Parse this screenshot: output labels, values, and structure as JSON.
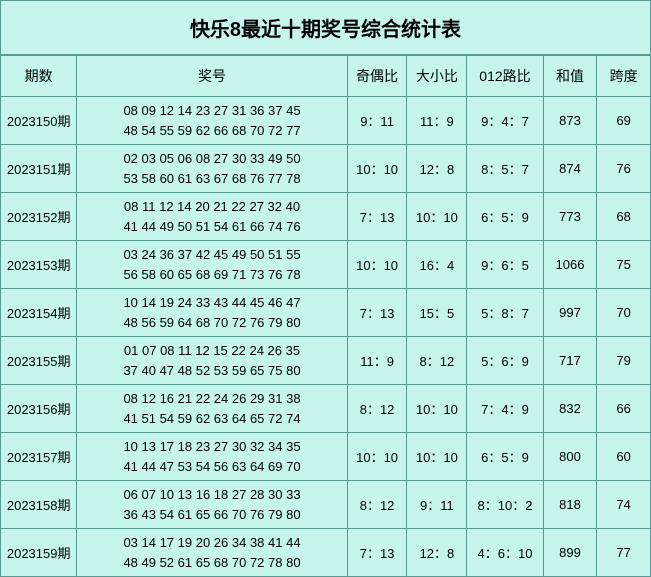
{
  "title": "快乐8最近十期奖号综合统计表",
  "headers": {
    "period": "期数",
    "numbers": "奖号",
    "oddeven": "奇偶比",
    "bigsmall": "大小比",
    "route012": "012路比",
    "sum": "和值",
    "span": "跨度"
  },
  "rows": [
    {
      "period": "2023150期",
      "numbers_line1": "08 09 12 14 23 27 31 36 37 45",
      "numbers_line2": "48 54 55 59 62 66 68 70 72 77",
      "oddeven": "9：11",
      "bigsmall": "11：9",
      "route012": "9：4：7",
      "sum": "873",
      "span": "69"
    },
    {
      "period": "2023151期",
      "numbers_line1": "02 03 05 06 08 27 30 33 49 50",
      "numbers_line2": "53 58 60 61 63 67 68 76 77 78",
      "oddeven": "10：10",
      "bigsmall": "12：8",
      "route012": "8：5：7",
      "sum": "874",
      "span": "76"
    },
    {
      "period": "2023152期",
      "numbers_line1": "08 11 12 14 20 21 22 27 32 40",
      "numbers_line2": "41 44 49 50 51 54 61 66 74 76",
      "oddeven": "7：13",
      "bigsmall": "10：10",
      "route012": "6：5：9",
      "sum": "773",
      "span": "68"
    },
    {
      "period": "2023153期",
      "numbers_line1": "03 24 36 37 42 45 49 50 51 55",
      "numbers_line2": "56 58 60 65 68 69 71 73 76 78",
      "oddeven": "10：10",
      "bigsmall": "16：4",
      "route012": "9：6：5",
      "sum": "1066",
      "span": "75"
    },
    {
      "period": "2023154期",
      "numbers_line1": "10 14 19 24 33 43 44 45 46 47",
      "numbers_line2": "48 56 59 64 68 70 72 76 79 80",
      "oddeven": "7：13",
      "bigsmall": "15：5",
      "route012": "5：8：7",
      "sum": "997",
      "span": "70"
    },
    {
      "period": "2023155期",
      "numbers_line1": "01 07 08 11 12 15 22 24 26 35",
      "numbers_line2": "37 40 47 48 52 53 59 65 75 80",
      "oddeven": "11：9",
      "bigsmall": "8：12",
      "route012": "5：6：9",
      "sum": "717",
      "span": "79"
    },
    {
      "period": "2023156期",
      "numbers_line1": "08 12 16 21 22 24 26 29 31 38",
      "numbers_line2": "41 51 54 59 62 63 64 65 72 74",
      "oddeven": "8：12",
      "bigsmall": "10：10",
      "route012": "7：4：9",
      "sum": "832",
      "span": "66"
    },
    {
      "period": "2023157期",
      "numbers_line1": "10 13 17 18 23 27 30 32 34 35",
      "numbers_line2": "41 44 47 53 54 56 63 64 69 70",
      "oddeven": "10：10",
      "bigsmall": "10：10",
      "route012": "6：5：9",
      "sum": "800",
      "span": "60"
    },
    {
      "period": "2023158期",
      "numbers_line1": "06 07 10 13 16 18 27 28 30 33",
      "numbers_line2": "36 43 54 61 65 66 70 76 79 80",
      "oddeven": "8：12",
      "bigsmall": "9：11",
      "route012": "8：10：2",
      "sum": "818",
      "span": "74"
    },
    {
      "period": "2023159期",
      "numbers_line1": "03 14 17 19 20 26 34 38 41 44",
      "numbers_line2": "48 49 52 61 65 68 70 72 78 80",
      "oddeven": "7：13",
      "bigsmall": "12：8",
      "route012": "4：6：10",
      "sum": "899",
      "span": "77"
    }
  ],
  "styles": {
    "background_color": "#c5f5ec",
    "border_color": "#5a9a94",
    "text_color": "#000000",
    "title_fontsize": 20,
    "header_fontsize": 14,
    "cell_fontsize": 13
  }
}
